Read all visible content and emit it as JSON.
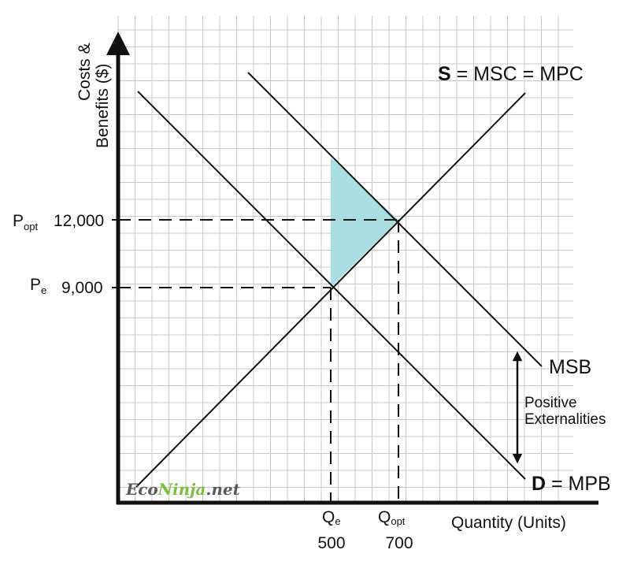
{
  "colors": {
    "grid": "#c8c8c8",
    "ink": "#111111",
    "welfare_gain": "#a8dde1",
    "watermark_dark": "#5a5a5a",
    "watermark_accent": "#7bbf3c"
  },
  "y_axis": {
    "title_line1": "Costs &",
    "title_line2": "Benefits ($)"
  },
  "x_axis": {
    "title": "Quantity (Units)"
  },
  "prices": {
    "p_opt": {
      "symbol": "P",
      "sub": "opt",
      "value": "12,000"
    },
    "p_e": {
      "symbol": "P",
      "sub": "e",
      "value": "9,000"
    }
  },
  "quantities": {
    "q_e": {
      "symbol": "Q",
      "sub": "e",
      "value": "500"
    },
    "q_opt": {
      "symbol": "Q",
      "sub": "opt",
      "value": "700"
    }
  },
  "curves": {
    "supply": {
      "bold": "S",
      "rest": " = MSC = MPC"
    },
    "msb": {
      "label": "MSB"
    },
    "demand": {
      "bold": "D",
      "rest": " = MPB"
    }
  },
  "externality": {
    "line1": "Positive",
    "line2": "Externalities"
  },
  "watermark": {
    "part1": "Eco",
    "part2": "Ninja",
    "part3": ".net"
  }
}
